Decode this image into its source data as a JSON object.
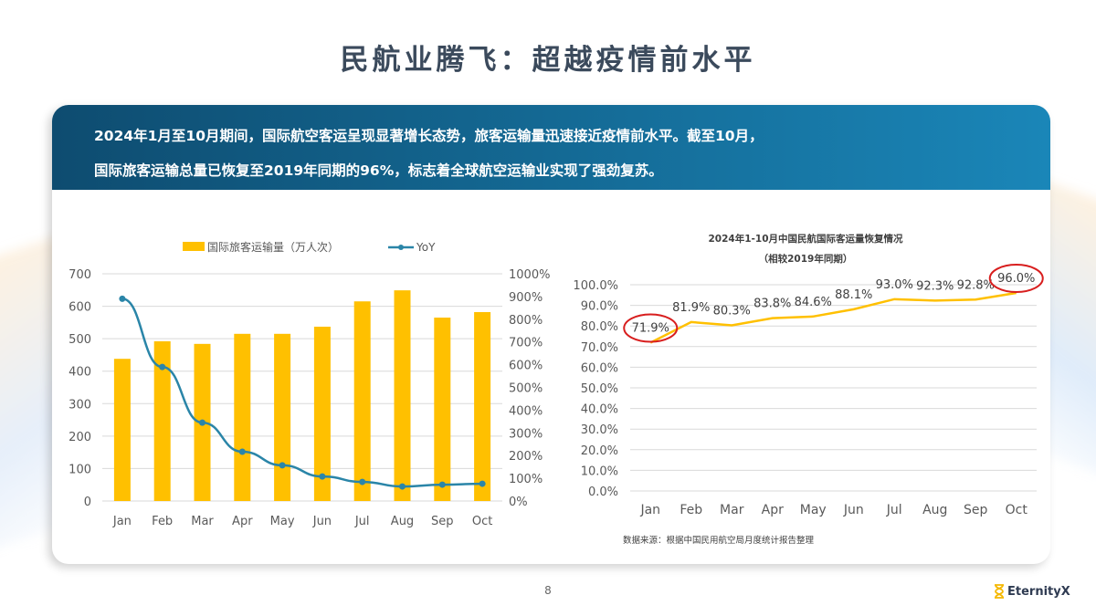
{
  "page": {
    "title": "民航业腾飞：超越疫情前水平",
    "summary_line1": "2024年1月至10月期间，国际航空客运呈现显著增长态势，旅客运输量迅速接近疫情前水平。截至10月，",
    "summary_line2": "国际旅客运输总量已恢复至2019年同期的96%，标志着全球航空运输业实现了强劲复苏。",
    "page_number": "8",
    "logo_text": "EternityX",
    "colors": {
      "banner_start": "#0e4c70",
      "banner_end": "#1a86b8",
      "bar": "#FFC000",
      "yoy_line": "#2a85a8",
      "recovery_line": "#FFC000",
      "highlight_circle": "#d81e1e"
    }
  },
  "chart_data": [
    {
      "type": "bar",
      "title": "",
      "categories": [
        "Jan",
        "Feb",
        "Mar",
        "Apr",
        "May",
        "Jun",
        "Jul",
        "Aug",
        "Sep",
        "Oct"
      ],
      "series": [
        {
          "name": "国际旅客运输量（万人次）",
          "type": "bar",
          "axis": "left",
          "values": [
            438,
            492,
            484,
            515,
            515,
            537,
            615,
            649,
            565,
            582
          ]
        },
        {
          "name": "YoY",
          "type": "line",
          "axis": "right",
          "values": [
            890,
            590,
            345,
            217,
            157,
            108,
            84,
            64,
            72,
            76
          ]
        }
      ],
      "xlabel": "",
      "ylabel": "",
      "ylim": [
        0,
        700
      ],
      "y_ticks": [
        "0",
        "100",
        "200",
        "300",
        "400",
        "500",
        "600",
        "700"
      ],
      "y2lim": [
        0,
        1000
      ],
      "y2_ticks": [
        "0%",
        "100%",
        "200%",
        "300%",
        "400%",
        "500%",
        "600%",
        "700%",
        "800%",
        "900%",
        "1000%"
      ],
      "legend": [
        "国际旅客运输量（万人次）",
        "YoY"
      ],
      "legend_position": "top",
      "grid": true
    },
    {
      "type": "line",
      "title": "2024年1-10月中国民航国际客运量恢复情况",
      "subtitle": "（相较2019年同期）",
      "categories": [
        "Jan",
        "Feb",
        "Mar",
        "Apr",
        "May",
        "Jun",
        "Jul",
        "Aug",
        "Sep",
        "Oct"
      ],
      "values": [
        71.9,
        81.9,
        80.3,
        83.8,
        84.6,
        88.1,
        93.0,
        92.3,
        92.8,
        96.0
      ],
      "labels": [
        "71.9%",
        "81.9%",
        "80.3%",
        "83.8%",
        "84.6%",
        "88.1%",
        "93.0%",
        "92.3%",
        "92.8%",
        "96.0%"
      ],
      "ylim": [
        0,
        100
      ],
      "y_ticks": [
        "0.0%",
        "10.0%",
        "20.0%",
        "30.0%",
        "40.0%",
        "50.0%",
        "60.0%",
        "70.0%",
        "80.0%",
        "90.0%",
        "100.0%"
      ],
      "annotations": [
        "71.9% circled in red",
        "96.0% circled in red"
      ],
      "source": "数据来源：根据中国民用航空局月度统计报告整理",
      "grid": true
    }
  ]
}
